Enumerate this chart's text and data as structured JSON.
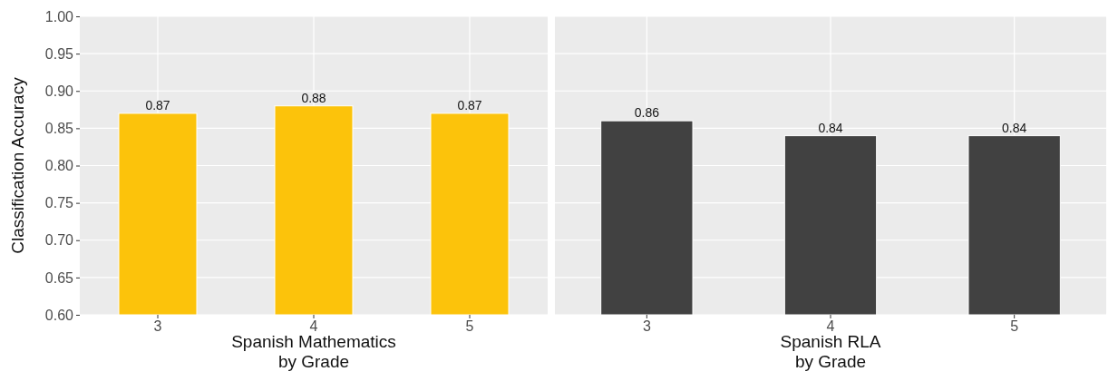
{
  "chart_data": [
    {
      "type": "bar",
      "xlabel": "Spanish Mathematics\nby Grade",
      "ylabel": "Classification Accuracy",
      "categories": [
        "3",
        "4",
        "5"
      ],
      "values": [
        0.87,
        0.88,
        0.87
      ],
      "color": "#fcc30b",
      "ylim": [
        0.6,
        1.0
      ],
      "yticks": [
        {
          "value": 0.6,
          "label": "0.60"
        },
        {
          "value": 0.65,
          "label": "0.65"
        },
        {
          "value": 0.7,
          "label": "0.70"
        },
        {
          "value": 0.75,
          "label": "0.75"
        },
        {
          "value": 0.8,
          "label": "0.80"
        },
        {
          "value": 0.85,
          "label": "0.85"
        },
        {
          "value": 0.9,
          "label": "0.90"
        },
        {
          "value": 0.95,
          "label": "0.95"
        },
        {
          "value": 1.0,
          "label": "1.00"
        }
      ],
      "grid": true,
      "data_labels": true
    },
    {
      "type": "bar",
      "xlabel": "Spanish RLA\nby Grade",
      "categories": [
        "3",
        "4",
        "5"
      ],
      "values": [
        0.86,
        0.84,
        0.84
      ],
      "color": "#414141",
      "ylim": [
        0.6,
        1.0
      ],
      "yticks": [
        0.6,
        0.65,
        0.7,
        0.75,
        0.8,
        0.85,
        0.9,
        0.95,
        1.0
      ],
      "grid": true,
      "data_labels": true,
      "tick_labels": "x"
    }
  ]
}
